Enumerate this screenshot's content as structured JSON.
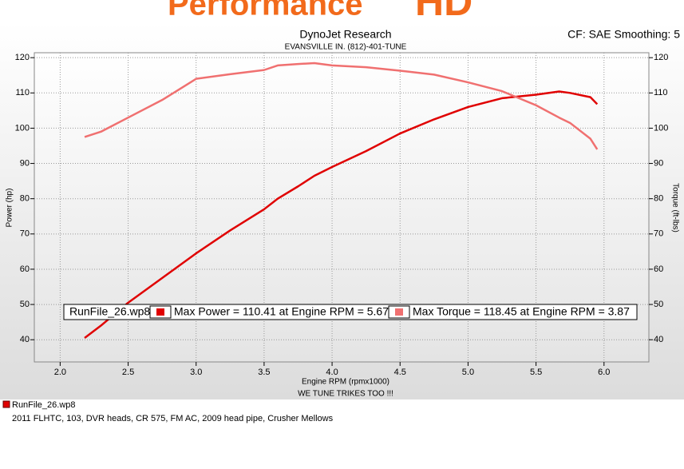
{
  "banner": {
    "brand": "Performance",
    "logo": "HD"
  },
  "chart_data": {
    "type": "line",
    "title": "DynoJet Research",
    "subtitle": "EVANSVILLE IN. (812)-401-TUNE",
    "corner_note": "CF: SAE Smoothing: 5",
    "xlabel": "Engine RPM (rpmx1000)",
    "x_note": "WE TUNE TRIKES TOO !!!",
    "ylabel": "Power (hp)",
    "y2label": "Torque (ft-lbs)",
    "annotation": {
      "file": "RunFile_26.wp8",
      "power": "Max Power = 110.41 at Engine RPM = 5.67",
      "torque": "Max Torque = 118.45 at Engine RPM = 3.87"
    },
    "x": [
      2.18,
      2.3,
      2.5,
      2.75,
      3.0,
      3.25,
      3.5,
      3.6,
      3.75,
      3.87,
      4.0,
      4.25,
      4.5,
      4.75,
      5.0,
      5.25,
      5.5,
      5.67,
      5.75,
      5.9,
      5.95
    ],
    "series": [
      {
        "name": "Power",
        "color": "#e00000",
        "axis": "y",
        "values": [
          40.5,
          44,
          50.5,
          57.5,
          64.5,
          71,
          77,
          80,
          83.5,
          86.5,
          89,
          93.5,
          98.5,
          102.5,
          106,
          108.5,
          109.5,
          110.4,
          110,
          108.8,
          106.8
        ]
      },
      {
        "name": "Torque",
        "color": "#f07070",
        "axis": "y2",
        "values": [
          97.5,
          99,
          103,
          108,
          114,
          115.3,
          116.5,
          117.8,
          118.2,
          118.45,
          117.8,
          117.3,
          116.3,
          115.2,
          113,
          110.5,
          106.5,
          103,
          101.5,
          97,
          94
        ]
      }
    ],
    "xlim": [
      1.81,
      6.33
    ],
    "xticks": [
      {
        "value": 2,
        "label": "2.0"
      },
      2.5,
      {
        "value": 3,
        "label": "3.0"
      },
      3.5,
      {
        "value": 4,
        "label": "4.0"
      },
      4.5,
      {
        "value": 5,
        "label": "5.0"
      },
      5.5,
      {
        "value": 6,
        "label": "6.0"
      }
    ],
    "ylim": [
      33.7,
      121.4
    ],
    "yticks": [
      40,
      50,
      60,
      70,
      80,
      90,
      100,
      110,
      120
    ],
    "y2lim": [
      33.7,
      121.4
    ],
    "y2ticks": [
      40,
      50,
      60,
      70,
      80,
      90,
      100,
      110,
      120
    ],
    "grid": true
  },
  "footer": {
    "file": "RunFile_26.wp8",
    "description": "2011 FLHTC, 103, DVR heads, CR 575, FM AC, 2009 head pipe, Crusher Mellows"
  }
}
